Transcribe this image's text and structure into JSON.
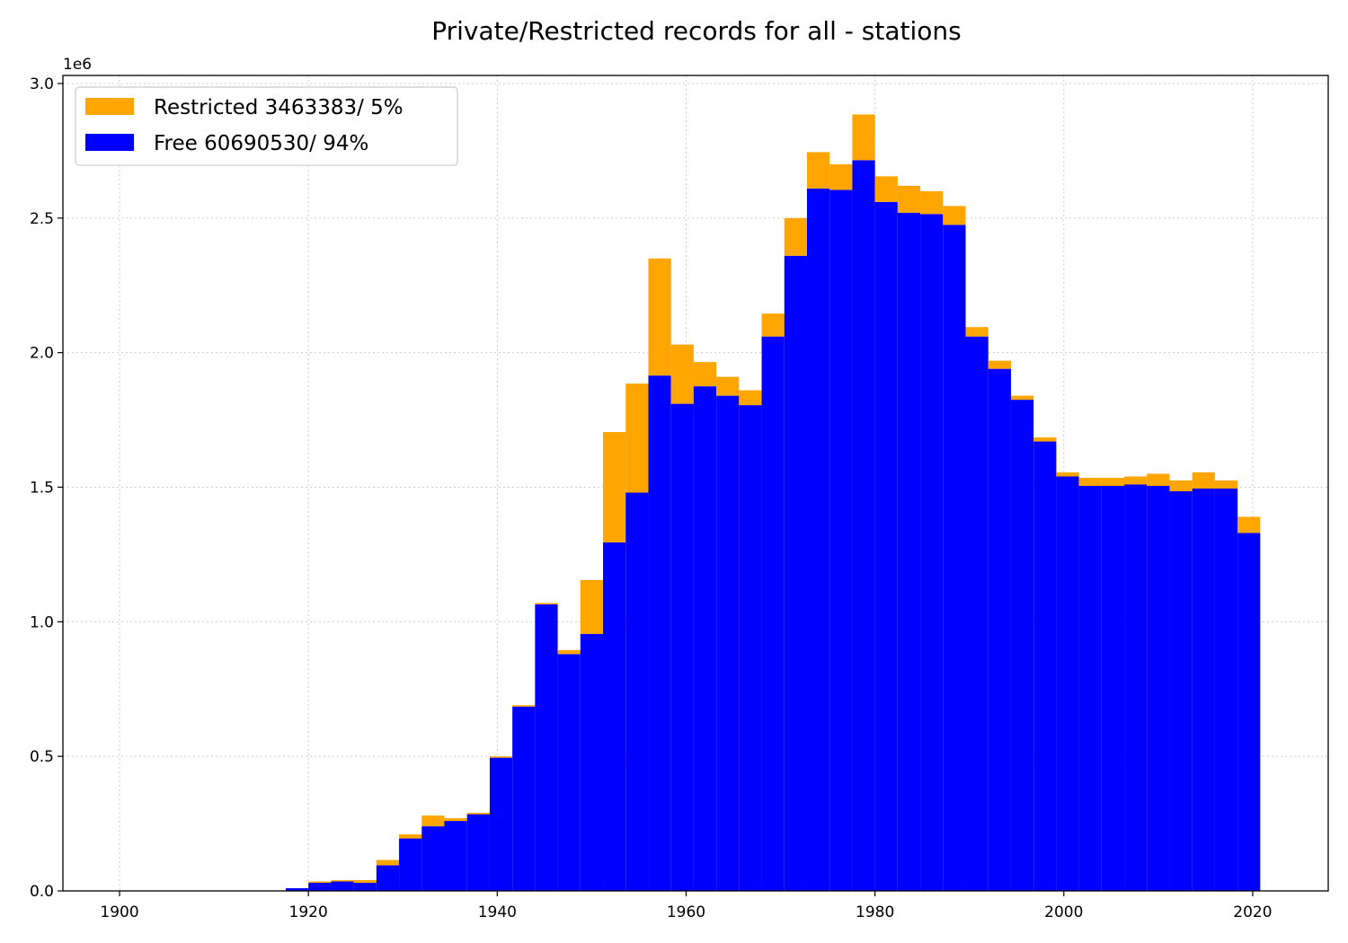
{
  "chart_data": {
    "type": "bar",
    "stacked": true,
    "title": "Private/Restricted records for all -  stations",
    "xlabel": "",
    "ylabel": "",
    "y_offset_label": "1e6",
    "xlim": [
      1894,
      2028
    ],
    "ylim": [
      0,
      3.03
    ],
    "y_unit_multiplier": 1000000,
    "x_ticks": [
      1900,
      1920,
      1940,
      1960,
      1980,
      2000,
      2020
    ],
    "x_tick_labels": [
      "1900",
      "1920",
      "1940",
      "1960",
      "1980",
      "2000",
      "2020"
    ],
    "y_ticks": [
      0.0,
      0.5,
      1.0,
      1.5,
      2.0,
      2.5,
      3.0
    ],
    "y_tick_labels": [
      "0.0",
      "0.5",
      "1.0",
      "1.5",
      "2.0",
      "2.5",
      "3.0"
    ],
    "grid": true,
    "legend_position": "top-left",
    "bin_width": 2.4,
    "x": [
      1917.6,
      1920.0,
      1922.4,
      1924.8,
      1927.2,
      1929.6,
      1932.0,
      1934.4,
      1936.8,
      1939.2,
      1941.6,
      1944.0,
      1946.4,
      1948.8,
      1951.2,
      1953.6,
      1956.0,
      1958.4,
      1960.8,
      1963.2,
      1965.6,
      1968.0,
      1970.4,
      1972.8,
      1975.2,
      1977.6,
      1980.0,
      1982.4,
      1984.8,
      1987.2,
      1989.6,
      1992.0,
      1994.4,
      1996.8,
      1999.2,
      2001.6,
      2004.0,
      2006.4,
      2008.8,
      2011.2,
      2013.6,
      2016.0,
      2018.4
    ],
    "series": [
      {
        "name": "Free 60690530/ 94%",
        "color": "#0000ff",
        "values": [
          0.01,
          0.03,
          0.035,
          0.03,
          0.095,
          0.195,
          0.24,
          0.26,
          0.285,
          0.495,
          0.685,
          1.065,
          0.88,
          0.955,
          1.295,
          1.48,
          1.915,
          1.81,
          1.875,
          1.84,
          1.805,
          2.06,
          2.36,
          2.61,
          2.605,
          2.715,
          2.56,
          2.52,
          2.515,
          2.475,
          2.06,
          1.94,
          1.825,
          1.67,
          1.54,
          1.505,
          1.505,
          1.51,
          1.505,
          1.485,
          1.495,
          1.495,
          1.33
        ]
      },
      {
        "name": "Restricted 3463383/ 5%",
        "color": "#ffa500",
        "values": [
          0.0,
          0.005,
          0.005,
          0.01,
          0.02,
          0.015,
          0.04,
          0.01,
          0.005,
          0.005,
          0.005,
          0.005,
          0.015,
          0.2,
          0.41,
          0.405,
          0.435,
          0.22,
          0.09,
          0.07,
          0.055,
          0.085,
          0.14,
          0.135,
          0.095,
          0.17,
          0.095,
          0.1,
          0.085,
          0.07,
          0.035,
          0.03,
          0.015,
          0.015,
          0.015,
          0.03,
          0.03,
          0.03,
          0.045,
          0.04,
          0.06,
          0.03,
          0.06
        ]
      }
    ],
    "legend": [
      {
        "label": "Restricted 3463383/ 5%",
        "color": "#ffa500"
      },
      {
        "label": "Free 60690530/ 94%",
        "color": "#0000ff"
      }
    ]
  }
}
